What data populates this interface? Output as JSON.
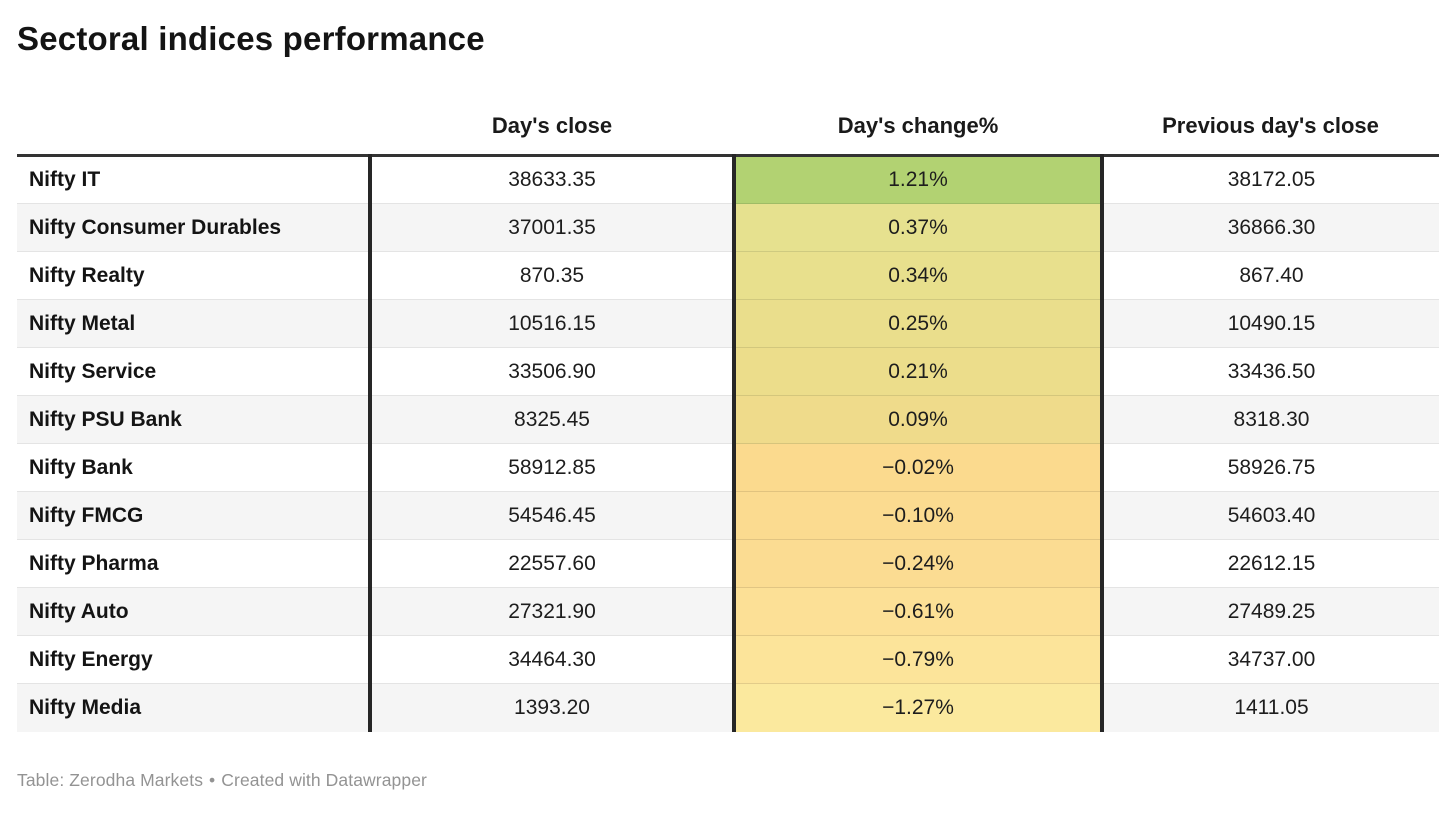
{
  "title": "Sectoral indices performance",
  "columns": {
    "index": "",
    "close": "Day's close",
    "change": "Day's change%",
    "prev": "Previous day's close"
  },
  "table": {
    "rows": [
      {
        "name": "Nifty IT",
        "close": "38633.35",
        "change": "1.21%",
        "prev": "38172.05",
        "color": "#b2d272"
      },
      {
        "name": "Nifty Consumer Durables",
        "close": "37001.35",
        "change": "0.37%",
        "prev": "36866.30",
        "color": "#e6e18f"
      },
      {
        "name": "Nifty Realty",
        "close": "870.35",
        "change": "0.34%",
        "prev": "867.40",
        "color": "#e8e08d"
      },
      {
        "name": "Nifty Metal",
        "close": "10516.15",
        "change": "0.25%",
        "prev": "10490.15",
        "color": "#eade8c"
      },
      {
        "name": "Nifty Service",
        "close": "33506.90",
        "change": "0.21%",
        "prev": "33436.50",
        "color": "#ecdd8b"
      },
      {
        "name": "Nifty PSU Bank",
        "close": "8325.45",
        "change": "0.09%",
        "prev": "8318.30",
        "color": "#efdb8b"
      },
      {
        "name": "Nifty Bank",
        "close": "58912.85",
        "change": "−0.02%",
        "prev": "58926.75",
        "color": "#fbda8e"
      },
      {
        "name": "Nifty FMCG",
        "close": "54546.45",
        "change": "−0.10%",
        "prev": "54603.40",
        "color": "#fbdb90"
      },
      {
        "name": "Nifty Pharma",
        "close": "22557.60",
        "change": "−0.24%",
        "prev": "22612.15",
        "color": "#fbdc92"
      },
      {
        "name": "Nifty Auto",
        "close": "27321.90",
        "change": "−0.61%",
        "prev": "27489.25",
        "color": "#fce096"
      },
      {
        "name": "Nifty Energy",
        "close": "34464.30",
        "change": "−0.79%",
        "prev": "34737.00",
        "color": "#fce49a"
      },
      {
        "name": "Nifty Media",
        "close": "1393.20",
        "change": "−1.27%",
        "prev": "1411.05",
        "color": "#fbe99e"
      }
    ]
  },
  "footer": {
    "label": "Table: ",
    "source": "Zerodha Markets",
    "separator": "•",
    "attribution": "Created with Datawrapper"
  },
  "colors": {
    "top_border": "#333333",
    "divider": "#262626",
    "alt_row": "#f5f5f5",
    "positive_max": "#b2d272",
    "neutral_yellow": "#fbda8e",
    "negative_min": "#fbe99e"
  },
  "chart_data": {
    "type": "table",
    "title": "Sectoral indices performance",
    "columns": [
      "",
      "Day's close",
      "Day's change%",
      "Previous day's close"
    ],
    "heatmap_column": "Day's change%",
    "rows": [
      [
        "Nifty IT",
        38633.35,
        1.21,
        38172.05
      ],
      [
        "Nifty Consumer Durables",
        37001.35,
        0.37,
        36866.3
      ],
      [
        "Nifty Realty",
        870.35,
        0.34,
        867.4
      ],
      [
        "Nifty Metal",
        10516.15,
        0.25,
        10490.15
      ],
      [
        "Nifty Service",
        33506.9,
        0.21,
        33436.5
      ],
      [
        "Nifty PSU Bank",
        8325.45,
        0.09,
        8318.3
      ],
      [
        "Nifty Bank",
        58912.85,
        -0.02,
        58926.75
      ],
      [
        "Nifty FMCG",
        54546.45,
        -0.1,
        54603.4
      ],
      [
        "Nifty Pharma",
        22557.6,
        -0.24,
        22612.15
      ],
      [
        "Nifty Auto",
        27321.9,
        -0.61,
        27489.25
      ],
      [
        "Nifty Energy",
        34464.3,
        -0.79,
        34737.0
      ],
      [
        "Nifty Media",
        1393.2,
        -1.27,
        1411.05
      ]
    ],
    "footer": "Table: Zerodha Markets • Created with Datawrapper"
  }
}
